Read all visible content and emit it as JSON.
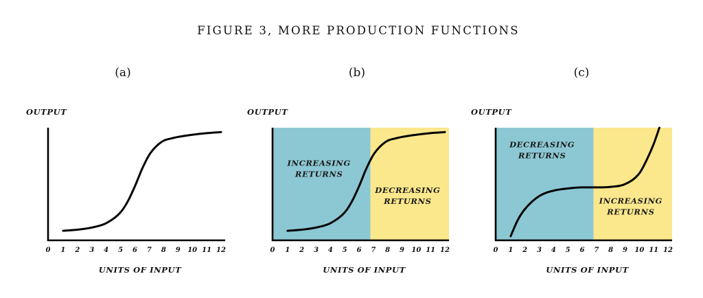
{
  "figure_title": "FIGURE 3, MORE PRODUCTION FUNCTIONS",
  "chart_data": [
    {
      "type": "line",
      "panel": "(a)",
      "ylabel": "OUTPUT",
      "xlabel": "UNITS OF INPUT",
      "x_ticks": [
        "0",
        "1",
        "2",
        "3",
        "4",
        "5",
        "6",
        "7",
        "8",
        "9",
        "10",
        "11",
        "12"
      ],
      "xlim": [
        0,
        12
      ],
      "ylim": [
        0,
        100
      ],
      "series": [
        {
          "x": [
            1,
            2,
            3,
            4,
            5,
            5.5,
            6,
            6.5,
            7,
            7.5,
            8,
            8.5,
            9,
            10,
            11,
            12
          ],
          "y": [
            5,
            6,
            8,
            12,
            22,
            32,
            46,
            62,
            75,
            83,
            88,
            90,
            91.5,
            93.5,
            95,
            96
          ]
        }
      ],
      "regions": []
    },
    {
      "type": "line",
      "panel": "(b)",
      "ylabel": "OUTPUT",
      "xlabel": "UNITS OF INPUT",
      "x_ticks": [
        "0",
        "1",
        "2",
        "3",
        "4",
        "5",
        "6",
        "7",
        "8",
        "9",
        "10",
        "11",
        "12"
      ],
      "xlim": [
        0,
        12
      ],
      "ylim": [
        0,
        100
      ],
      "series": [
        {
          "x": [
            1,
            2,
            3,
            4,
            5,
            5.5,
            6,
            6.5,
            7,
            7.5,
            8,
            8.5,
            9,
            10,
            11,
            12
          ],
          "y": [
            5,
            6,
            8,
            12,
            22,
            32,
            46,
            62,
            75,
            83,
            88,
            90,
            91.5,
            93.5,
            95,
            96
          ]
        }
      ],
      "regions": [
        {
          "x0": 0,
          "x1": 6.8,
          "color": "#8cc8d4",
          "label": [
            "INCREASING",
            "RETURNS"
          ],
          "label_pos": [
            3.2,
            65
          ]
        },
        {
          "x0": 6.8,
          "x1": 12,
          "color": "#fbe78c",
          "label": [
            "DECREASING",
            "RETURNS"
          ],
          "label_pos": [
            9.4,
            40
          ]
        }
      ]
    },
    {
      "type": "line",
      "panel": "(c)",
      "ylabel": "OUTPUT",
      "xlabel": "UNITS OF INPUT",
      "x_ticks": [
        "0",
        "1",
        "2",
        "3",
        "4",
        "5",
        "6",
        "7",
        "8",
        "9",
        "10",
        "11",
        "12"
      ],
      "xlim": [
        0,
        12
      ],
      "ylim": [
        0,
        100
      ],
      "series": [
        {
          "x": [
            1,
            1.5,
            2,
            3,
            4,
            5,
            6,
            7,
            8,
            9,
            10,
            10.5,
            11,
            11.4
          ],
          "y": [
            0,
            15,
            25,
            37,
            42,
            44,
            45,
            45,
            45.5,
            48,
            58,
            70,
            85,
            100
          ]
        }
      ],
      "regions": [
        {
          "x0": 0,
          "x1": 6.8,
          "color": "#8cc8d4",
          "label": [
            "DECREASING",
            "RETURNS"
          ],
          "label_pos": [
            3.2,
            82
          ]
        },
        {
          "x0": 6.8,
          "x1": 12,
          "color": "#fbe78c",
          "label": [
            "INCREASING",
            "RETURNS"
          ],
          "label_pos": [
            9.4,
            30
          ]
        }
      ]
    }
  ]
}
